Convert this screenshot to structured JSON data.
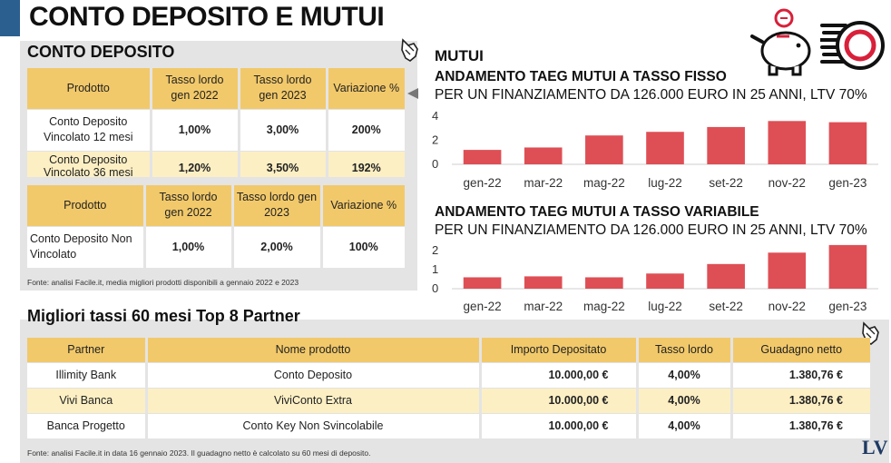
{
  "title": "CONTO DEPOSITO E MUTUI",
  "conto_deposito": {
    "title": "CONTO DEPOSITO",
    "table1": {
      "headers": [
        "Prodotto",
        "Tasso lordo gen 2022",
        "Tasso lordo gen 2023",
        "Variazione %"
      ],
      "rows": [
        [
          "Conto Deposito Vincolato 12 mesi",
          "1,00%",
          "3,00%",
          "200%"
        ],
        [
          "Conto Deposito Vincolato 36 mesi",
          "1,20%",
          "3,50%",
          "192%"
        ]
      ]
    },
    "table2": {
      "headers": [
        "Prodotto",
        "Tasso lordo gen 2022",
        "Tasso lordo gen 2023",
        "Variazione %"
      ],
      "rows": [
        [
          "Conto Deposito Non Vincolato",
          "1,00%",
          "2,00%",
          "100%"
        ]
      ]
    },
    "source": "Fonte: analisi Facile.it, media migliori prodotti disponibili a gennaio 2022 e 2023"
  },
  "mutui": {
    "title": "MUTUI",
    "fixed_title": "ANDAMENTO TAEG MUTUI A TASSO FISSO",
    "fixed_subtitle": "PER UN FINANZIAMENTO DA 126.000 EURO IN 25 ANNI, LTV 70%",
    "variable_title": "ANDAMENTO TAEG MUTUI A TASSO VARIABILE",
    "variable_subtitle": "PER UN FINANZIAMENTO DA 126.000 EURO IN 25 ANNI, LTV 70%"
  },
  "chart_data": [
    {
      "type": "bar",
      "title": "ANDAMENTO TAEG MUTUI A TASSO FISSO",
      "subtitle": "PER UN FINANZIAMENTO DA 126.000 EURO IN 25 ANNI, LTV 70%",
      "categories": [
        "gen-22",
        "mar-22",
        "mag-22",
        "lug-22",
        "set-22",
        "nov-22",
        "gen-23"
      ],
      "values": [
        1.2,
        1.4,
        2.4,
        2.7,
        3.1,
        3.6,
        3.5
      ],
      "yticks": [
        0,
        2,
        4
      ],
      "ylim": [
        0,
        4
      ],
      "color": "#de4f55"
    },
    {
      "type": "bar",
      "title": "ANDAMENTO TAEG MUTUI A TASSO VARIABILE",
      "subtitle": "PER UN FINANZIAMENTO DA 126.000 EURO IN 25 ANNI, LTV 70%",
      "categories": [
        "gen-22",
        "mar-22",
        "mag-22",
        "lug-22",
        "set-22",
        "nov-22",
        "gen-23"
      ],
      "values": [
        0.6,
        0.65,
        0.6,
        0.8,
        1.3,
        1.9,
        2.3
      ],
      "yticks": [
        0,
        1,
        2
      ],
      "ylim": [
        0,
        2.2
      ],
      "color": "#de4f55"
    }
  ],
  "partner": {
    "title": "Migliori tassi 60 mesi  Top 8 Partner",
    "headers": [
      "Partner",
      "Nome prodotto",
      "Importo Depositato",
      "Tasso lordo",
      "Guadagno netto"
    ],
    "rows": [
      [
        "Illimity Bank",
        "Conto Deposito",
        "10.000,00 €",
        "4,00%",
        "1.380,76 €"
      ],
      [
        "Vivi Banca",
        "ViviConto Extra",
        "10.000,00 €",
        "4,00%",
        "1.380,76 €"
      ],
      [
        "Banca Progetto",
        "Conto Key Non Svincolabile",
        "10.000,00 €",
        "4,00%",
        "1.380,76 €"
      ]
    ],
    "source": "Fonte: analisi Facile.it in data 16 gennaio 2023. Il guadagno netto è calcolato su 60 mesi di deposito."
  },
  "logo_text": "LV",
  "icons": [
    "pointing-hand-icon",
    "piggy-bank-icon",
    "coins-icon",
    "triangle-arrow-icon"
  ],
  "colors": {
    "accent_bar": "#2b5f8f",
    "header_yellow": "#f2c96a",
    "row_yellow": "#fcefc4",
    "bar_red": "#de4f55",
    "panel_gray": "#e4e4e4"
  }
}
